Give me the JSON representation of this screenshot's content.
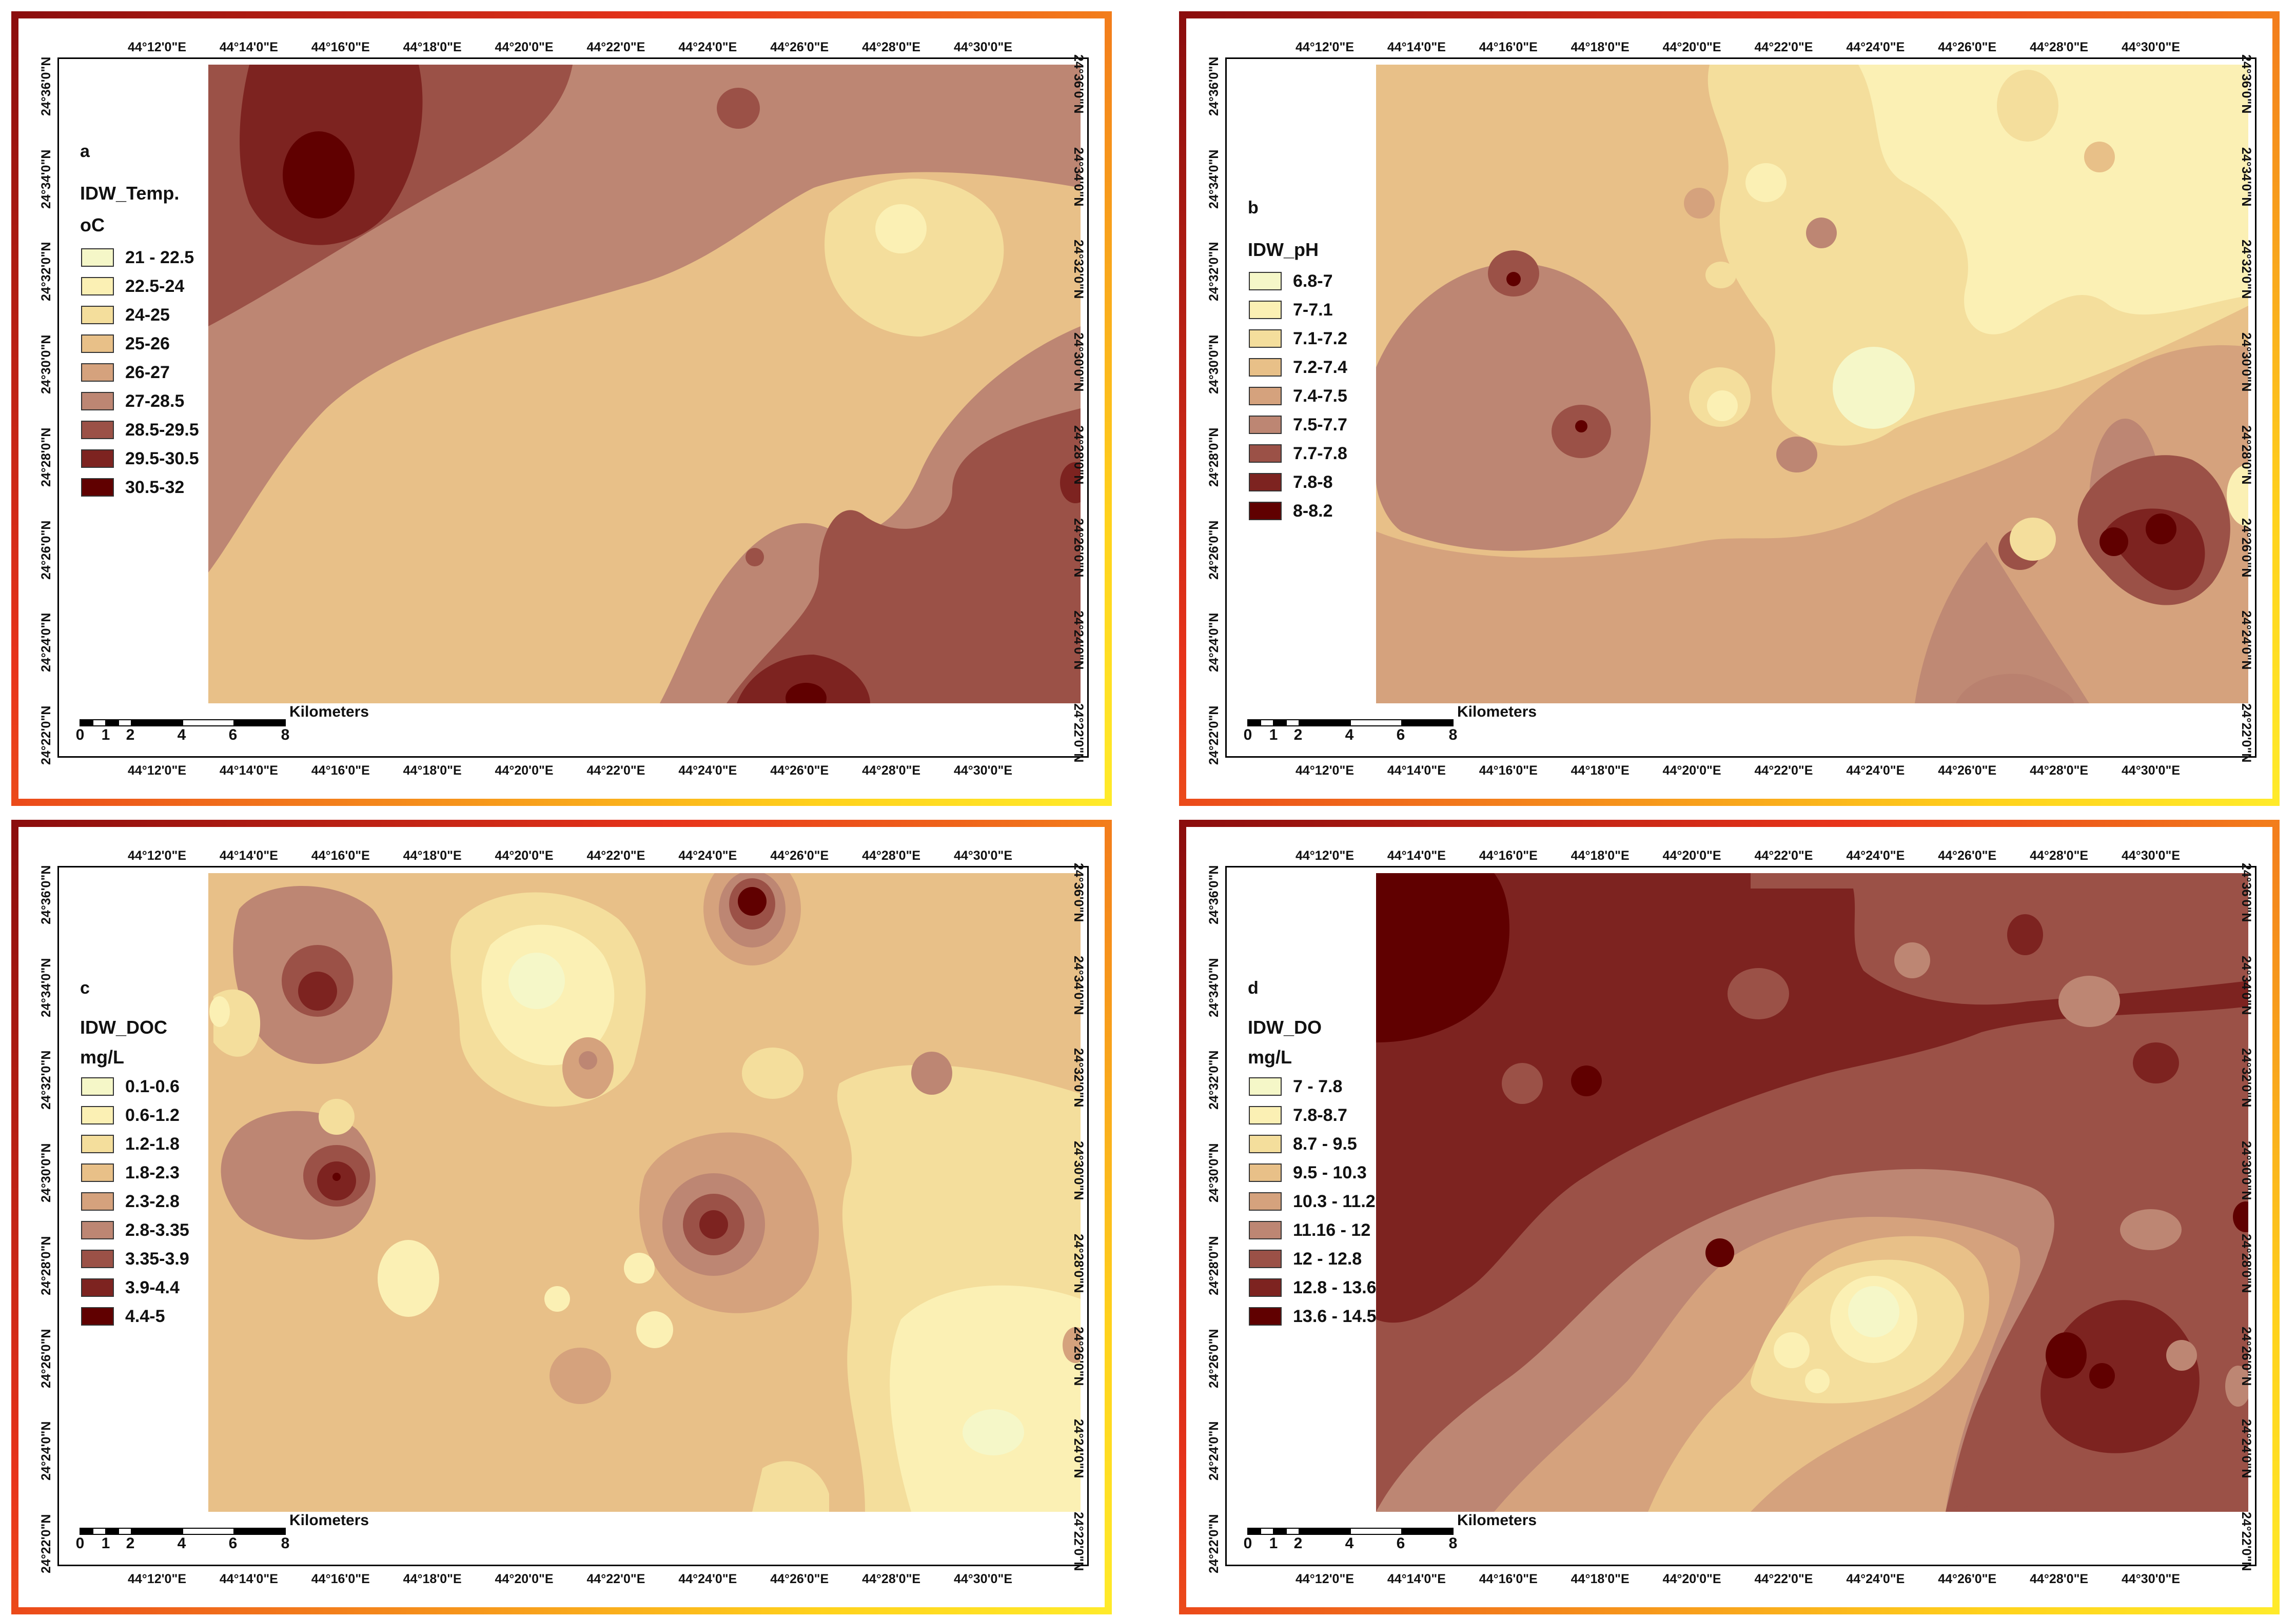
{
  "lon_ticks": [
    "44°12'0\"E",
    "44°14'0\"E",
    "44°16'0\"E",
    "44°18'0\"E",
    "44°20'0\"E",
    "44°22'0\"E",
    "44°24'0\"E",
    "44°26'0\"E",
    "44°28'0\"E",
    "44°30'0\"E"
  ],
  "lat_ticks": [
    "24°36'0\"N",
    "24°34'0\"N",
    "24°32'0\"N",
    "24°30'0\"N",
    "24°28'0\"N",
    "24°26'0\"N",
    "24°24'0\"N",
    "24°22'0\"N"
  ],
  "scale": {
    "unit": "Kilometers",
    "labels": [
      "0",
      "1",
      "2",
      "4",
      "6",
      "8"
    ]
  },
  "colors": {
    "frame_gradient": [
      "#8b0d0d",
      "#e8341a",
      "#ffd21c",
      "#ffea2a"
    ]
  },
  "panels": [
    {
      "id": "a",
      "letter": "a",
      "title": "IDW_Temp.",
      "unit": "oC",
      "legend": [
        {
          "label": "21 - 22.5",
          "color": "#f5f7c8"
        },
        {
          "label": "22.5-24",
          "color": "#fbf0b4"
        },
        {
          "label": "24-25",
          "color": "#f4de9c"
        },
        {
          "label": "25-26",
          "color": "#e8c088"
        },
        {
          "label": "26-27",
          "color": "#d5a27d"
        },
        {
          "label": "27-28.5",
          "color": "#bd8673"
        },
        {
          "label": "28.5-29.5",
          "color": "#9b5147"
        },
        {
          "label": "29.5-30.5",
          "color": "#7d2320"
        },
        {
          "label": "30.5-32",
          "color": "#600000"
        }
      ]
    },
    {
      "id": "b",
      "letter": "b",
      "title": "IDW_pH",
      "unit": "",
      "legend": [
        {
          "label": "6.8-7",
          "color": "#f5f7c8"
        },
        {
          "label": "7-7.1",
          "color": "#fbf0b4"
        },
        {
          "label": "7.1-7.2",
          "color": "#f4de9c"
        },
        {
          "label": "7.2-7.4",
          "color": "#e8c088"
        },
        {
          "label": "7.4-7.5",
          "color": "#d5a27d"
        },
        {
          "label": "7.5-7.7",
          "color": "#bd8673"
        },
        {
          "label": "7.7-7.8",
          "color": "#9b5147"
        },
        {
          "label": "7.8-8",
          "color": "#7d2320"
        },
        {
          "label": "8-8.2",
          "color": "#600000"
        }
      ]
    },
    {
      "id": "c",
      "letter": "c",
      "title": "IDW_DOC",
      "unit": "mg/L",
      "legend": [
        {
          "label": "0.1-0.6",
          "color": "#f5f7c8"
        },
        {
          "label": "0.6-1.2",
          "color": "#fbf0b4"
        },
        {
          "label": "1.2-1.8",
          "color": "#f4de9c"
        },
        {
          "label": "1.8-2.3",
          "color": "#e8c088"
        },
        {
          "label": "2.3-2.8",
          "color": "#d5a27d"
        },
        {
          "label": "2.8-3.35",
          "color": "#bd8673"
        },
        {
          "label": "3.35-3.9",
          "color": "#9b5147"
        },
        {
          "label": "3.9-4.4",
          "color": "#7d2320"
        },
        {
          "label": "4.4-5",
          "color": "#600000"
        }
      ]
    },
    {
      "id": "d",
      "letter": "d",
      "title": "IDW_DO",
      "unit": "mg/L",
      "legend": [
        {
          "label": "7 - 7.8",
          "color": "#f5f7c8"
        },
        {
          "label": "7.8-8.7",
          "color": "#fbf0b4"
        },
        {
          "label": "8.7 - 9.5",
          "color": "#f4de9c"
        },
        {
          "label": "9.5 - 10.3",
          "color": "#e8c088"
        },
        {
          "label": "10.3 - 11.2",
          "color": "#d5a27d"
        },
        {
          "label": "11.16 - 12",
          "color": "#bd8673"
        },
        {
          "label": "12 - 12.8",
          "color": "#9b5147"
        },
        {
          "label": "12.8 - 13.6",
          "color": "#7d2320"
        },
        {
          "label": "13.6 - 14.5",
          "color": "#600000"
        }
      ]
    }
  ]
}
